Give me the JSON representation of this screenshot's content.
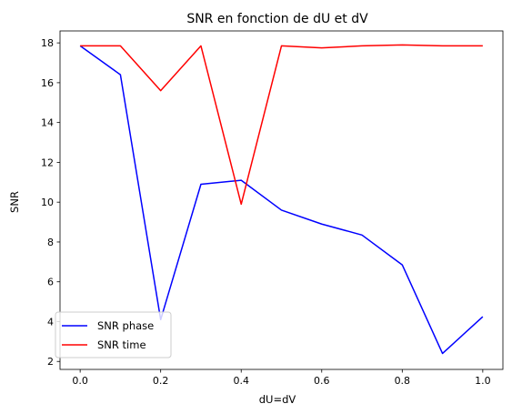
{
  "chart_data": {
    "type": "line",
    "title": "SNR en fonction de dU et dV",
    "xlabel": "dU=dV",
    "ylabel": "SNR",
    "xlim": [
      -0.05,
      1.05
    ],
    "ylim": [
      1.6,
      18.6
    ],
    "xticks": [
      0.0,
      0.2,
      0.4,
      0.6,
      0.8,
      1.0
    ],
    "xtick_labels": [
      "0.0",
      "0.2",
      "0.4",
      "0.6",
      "0.8",
      "1.0"
    ],
    "yticks": [
      2,
      4,
      6,
      8,
      10,
      12,
      14,
      16,
      18
    ],
    "ytick_labels": [
      "2",
      "4",
      "6",
      "8",
      "10",
      "12",
      "14",
      "16",
      "18"
    ],
    "grid": false,
    "legend_position": "lower-left",
    "x": [
      0.0,
      0.1,
      0.2,
      0.3,
      0.4,
      0.5,
      0.6,
      0.7,
      0.8,
      0.9,
      1.0
    ],
    "series": [
      {
        "name": "SNR phase",
        "color": "#0000ff",
        "values": [
          17.85,
          16.4,
          4.1,
          10.9,
          11.1,
          9.6,
          8.9,
          8.35,
          6.85,
          2.4,
          4.25
        ]
      },
      {
        "name": "SNR time",
        "color": "#ff0000",
        "values": [
          17.85,
          17.85,
          15.6,
          17.85,
          9.9,
          17.85,
          17.75,
          17.85,
          17.9,
          17.85,
          17.85
        ]
      }
    ]
  }
}
